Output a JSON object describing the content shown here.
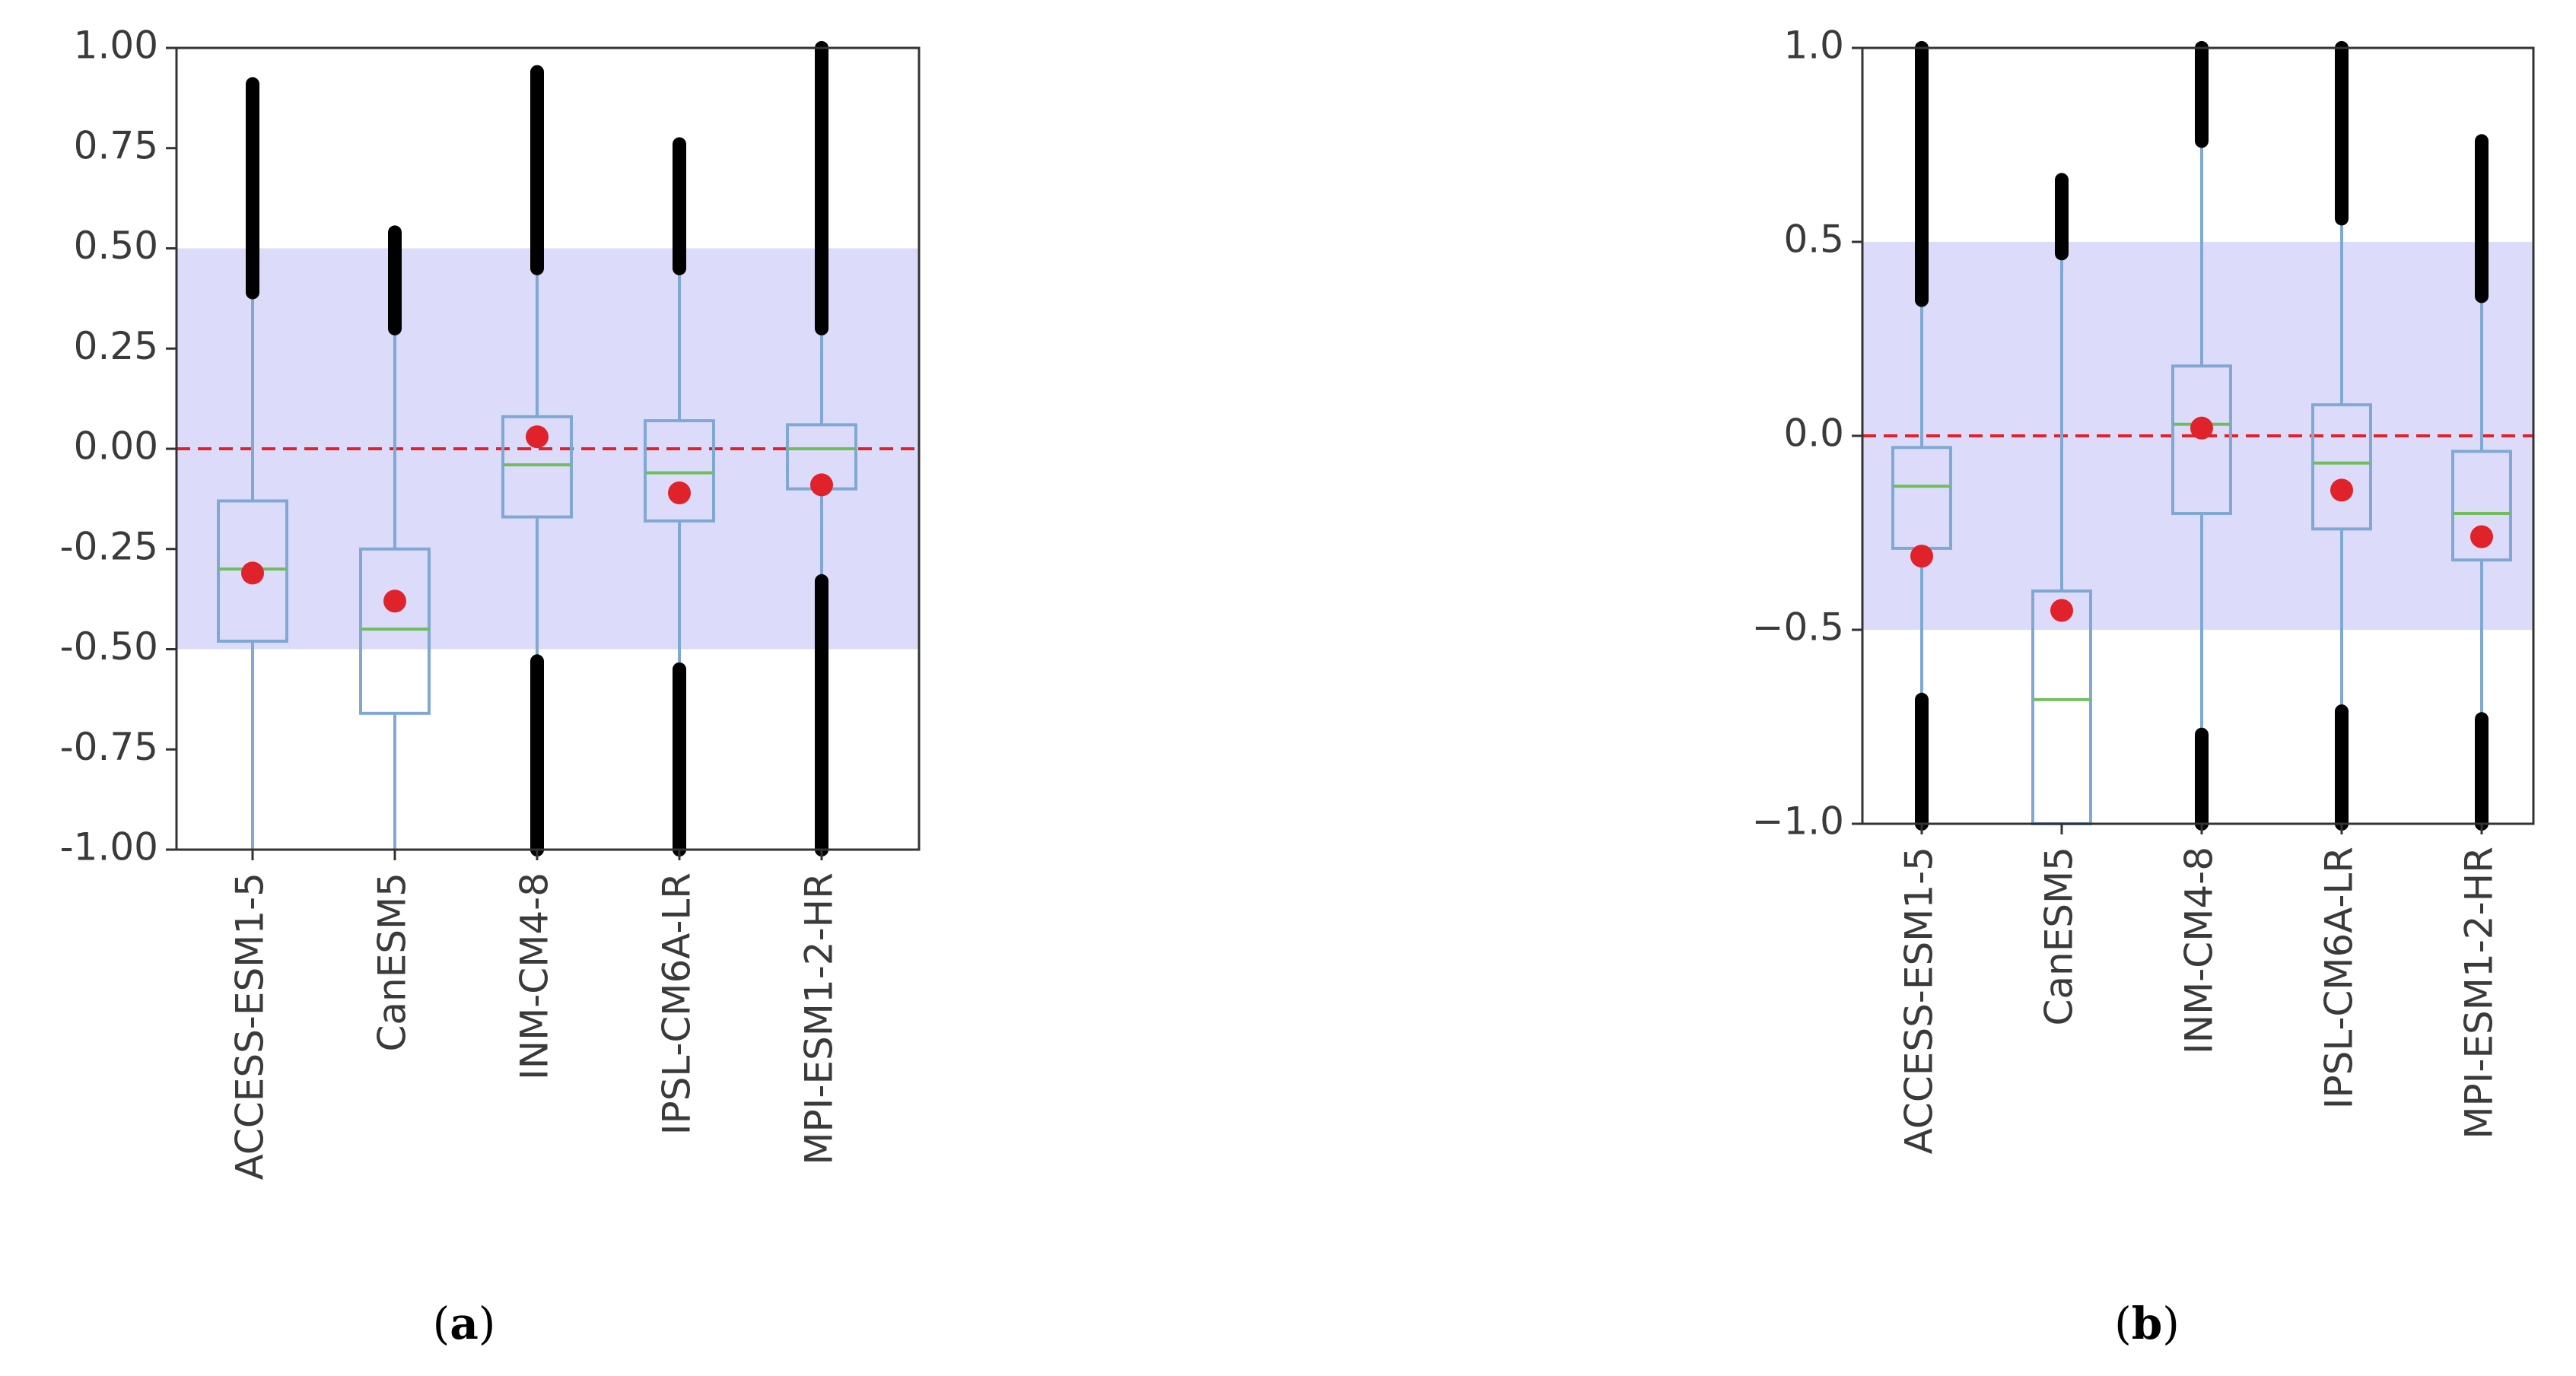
{
  "figure": {
    "colors": {
      "band": "#dcdcfa",
      "box": "#7fa9d4",
      "median": "#6fbe5a",
      "mean": "#e0232a",
      "zero_line": "#e0232a",
      "outlier": "#000000",
      "axis": "#333333",
      "text": "#3a3a3a"
    }
  },
  "chart_data": [
    {
      "type": "box",
      "caption_letter": "a",
      "caption_open": "(",
      "caption_close": ")",
      "ylim": [
        -1.0,
        1.0
      ],
      "yticks": [
        "1.00",
        "0.75",
        "0.50",
        "0.25",
        "0.00",
        "-0.25",
        "-0.50",
        "-0.75",
        "-1.00"
      ],
      "ytick_values": [
        1.0,
        0.75,
        0.5,
        0.25,
        0.0,
        -0.25,
        -0.5,
        -0.75,
        -1.0
      ],
      "band": [
        -0.5,
        0.5
      ],
      "reference_line": 0.0,
      "categories": [
        "ACCESS-ESM1-5",
        "CanESM5",
        "INM-CM4-8",
        "IPSL-CM6A-LR",
        "MPI-ESM1-2-HR"
      ],
      "boxes": [
        {
          "q1": -0.48,
          "median": -0.3,
          "q3": -0.13,
          "mean": -0.31,
          "whisker_low": -1.0,
          "whisker_high": 0.39,
          "outliers_high": [
            0.39,
            0.91
          ],
          "outliers_low": null
        },
        {
          "q1": -0.66,
          "median": -0.45,
          "q3": -0.25,
          "mean": -0.38,
          "whisker_low": -1.0,
          "whisker_high": 0.3,
          "outliers_high": [
            0.3,
            0.54
          ],
          "outliers_low": null
        },
        {
          "q1": -0.17,
          "median": -0.04,
          "q3": 0.08,
          "mean": 0.03,
          "whisker_low": -0.53,
          "whisker_high": 0.45,
          "outliers_high": [
            0.45,
            0.94
          ],
          "outliers_low": [
            -1.0,
            -0.53
          ]
        },
        {
          "q1": -0.18,
          "median": -0.06,
          "q3": 0.07,
          "mean": -0.11,
          "whisker_low": -0.55,
          "whisker_high": 0.45,
          "outliers_high": [
            0.45,
            0.76
          ],
          "outliers_low": [
            -1.0,
            -0.55
          ]
        },
        {
          "q1": -0.1,
          "median": 0.0,
          "q3": 0.06,
          "mean": -0.09,
          "whisker_low": -0.33,
          "whisker_high": 0.3,
          "outliers_high": [
            0.3,
            1.0
          ],
          "outliers_low": [
            -1.0,
            -0.33
          ]
        }
      ]
    },
    {
      "type": "box",
      "caption_letter": "b",
      "caption_open": "(",
      "caption_close": ")",
      "ylim": [
        -1.0,
        1.0
      ],
      "yticks": [
        "1.0",
        "0.5",
        "0.0",
        "−0.5",
        "−1.0"
      ],
      "ytick_values": [
        1.0,
        0.5,
        0.0,
        -0.5,
        -1.0
      ],
      "band": [
        -0.5,
        0.5
      ],
      "reference_line": 0.0,
      "categories": [
        "ACCESS-ESM1-5",
        "CanESM5",
        "INM-CM4-8",
        "IPSL-CM6A-LR",
        "MPI-ESM1-2-HR"
      ],
      "boxes": [
        {
          "q1": -0.29,
          "median": -0.13,
          "q3": -0.03,
          "mean": -0.31,
          "whisker_low": -0.68,
          "whisker_high": 0.35,
          "outliers_high": [
            0.35,
            1.0
          ],
          "outliers_low": [
            -1.0,
            -0.68
          ]
        },
        {
          "q1": -1.0,
          "median": -0.68,
          "q3": -0.4,
          "mean": -0.45,
          "whisker_low": -1.0,
          "whisker_high": 0.47,
          "outliers_high": [
            0.47,
            0.66
          ],
          "outliers_low": null
        },
        {
          "q1": -0.2,
          "median": 0.03,
          "q3": 0.18,
          "mean": 0.02,
          "whisker_low": -0.77,
          "whisker_high": 0.76,
          "outliers_high": [
            0.76,
            1.0
          ],
          "outliers_low": [
            -1.0,
            -0.77
          ]
        },
        {
          "q1": -0.24,
          "median": -0.07,
          "q3": 0.08,
          "mean": -0.14,
          "whisker_low": -0.71,
          "whisker_high": 0.56,
          "outliers_high": [
            0.56,
            1.0
          ],
          "outliers_low": [
            -1.0,
            -0.71
          ]
        },
        {
          "q1": -0.32,
          "median": -0.2,
          "q3": -0.04,
          "mean": -0.26,
          "whisker_low": -0.73,
          "whisker_high": 0.36,
          "outliers_high": [
            0.36,
            0.76
          ],
          "outliers_low": [
            -1.0,
            -0.73
          ]
        }
      ]
    }
  ]
}
